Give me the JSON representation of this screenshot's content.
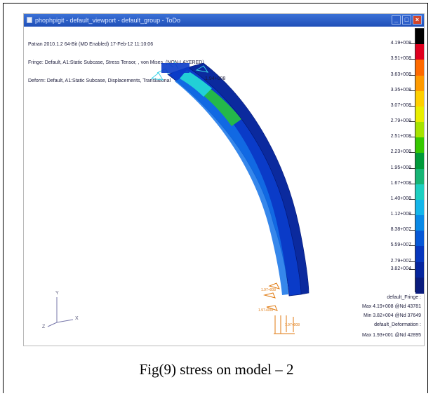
{
  "window": {
    "title": "phophpigit - default_viewport - default_group - ToDo",
    "buttons": {
      "minimize": "_",
      "maximize": "□",
      "close": "×"
    }
  },
  "header_lines": {
    "line1": "Patran 2010.1.2 64-Bit (MD Enabled) 17-Feb-12 11:10:06",
    "line2": "Fringe: Default, A1:Static Subcase, Stress Tensor, , von Mises, (NON-LAYERED)",
    "line3": "Deform: Default, A1:Static Subcase, Displacements, Translational"
  },
  "color_scale": {
    "labels": [
      "4.19+008",
      "3.91+008",
      "3.63+008",
      "3.35+008",
      "3.07+008",
      "2.79+008",
      "2.51+008",
      "2.23+008",
      "1.95+008",
      "1.67+008",
      "1.40+008",
      "1.12+008",
      "8.38+007",
      "5.59+007",
      "2.79+007",
      "3.82+004"
    ],
    "colors": [
      "#000000",
      "#e0001e",
      "#ff6a00",
      "#ff9b00",
      "#ffcf00",
      "#e9ee00",
      "#a6e300",
      "#36c800",
      "#009a3a",
      "#17b575",
      "#1ecfc0",
      "#14b6ea",
      "#0a8ae6",
      "#0658d6",
      "#0737bd",
      "#06269e",
      "#0a1c7d"
    ]
  },
  "legend": {
    "fringe_title": "default_Fringe :",
    "fringe_max": "Max 4.19+008 @Nd 43781",
    "fringe_min": "Min 3.82+004 @Nd 37649",
    "deform_title": "default_Deformation :",
    "deform_max": "Max 1.93+001 @Nd 42895"
  },
  "axes": {
    "y": "Y",
    "x": "X",
    "z": "Z"
  },
  "caption": "Fig(9) stress on model – 2"
}
